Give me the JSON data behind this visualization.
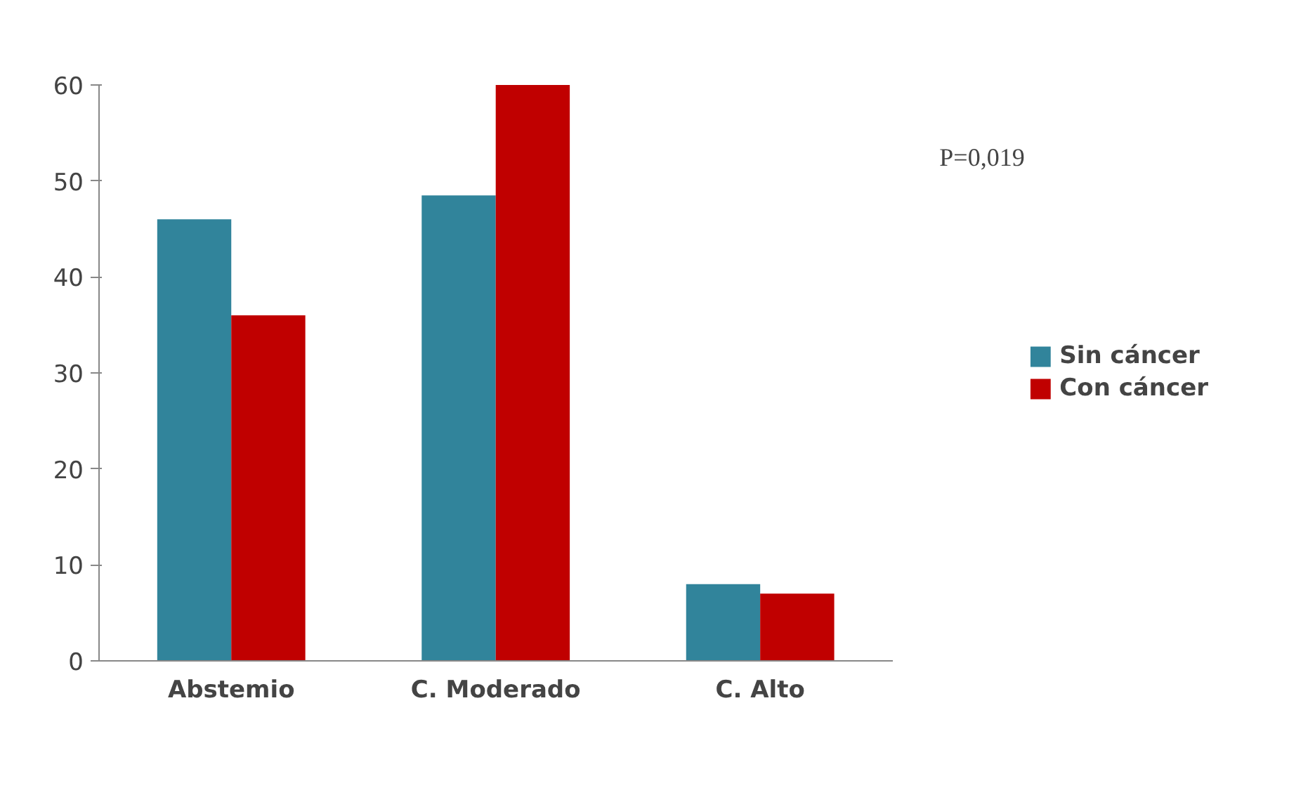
{
  "chart_data": {
    "type": "bar",
    "categories": [
      "Abstemio",
      "C. Moderado",
      "C. Alto"
    ],
    "series": [
      {
        "name": "Sin cáncer",
        "color": "#31849b",
        "values": [
          46,
          48.5,
          8
        ]
      },
      {
        "name": "Con cáncer",
        "color": "#c00000",
        "values": [
          36,
          60,
          7
        ]
      }
    ],
    "ylim": [
      0,
      60
    ],
    "yticks": [
      0,
      10,
      20,
      30,
      40,
      50,
      60
    ],
    "grid": false,
    "legend": "right",
    "annotations": [
      "P=0,019"
    ]
  }
}
